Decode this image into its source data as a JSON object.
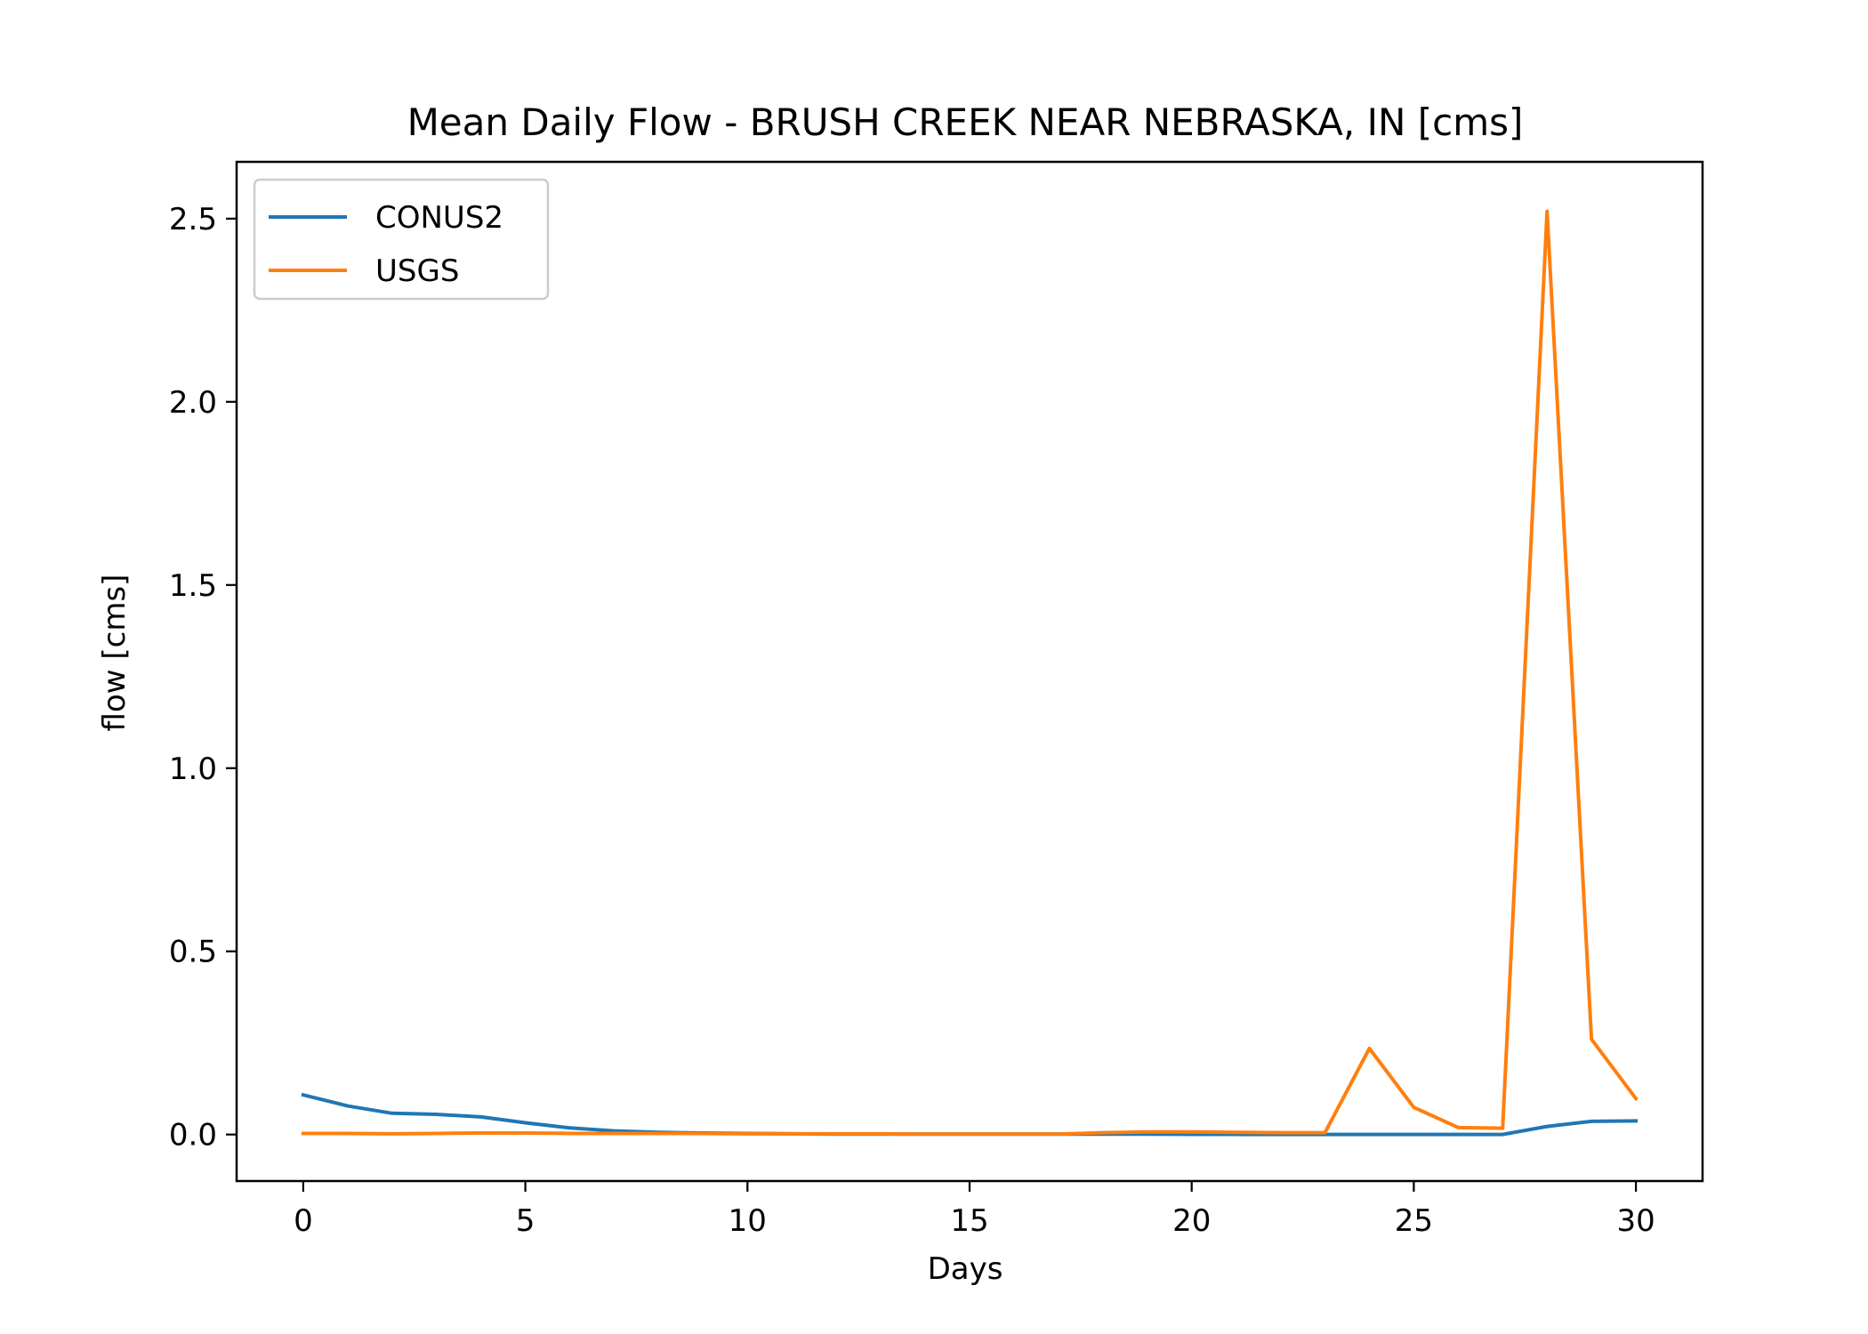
{
  "chart_data": {
    "type": "line",
    "title": "Mean Daily Flow - BRUSH CREEK NEAR NEBRASKA, IN [cms]",
    "xlabel": "Days",
    "ylabel": "flow [cms]",
    "xlim": [
      -1.5,
      31.5
    ],
    "ylim": [
      -0.127,
      2.655
    ],
    "xticks": [
      0,
      5,
      10,
      15,
      20,
      25,
      30
    ],
    "yticks": [
      0.0,
      0.5,
      1.0,
      1.5,
      2.0,
      2.5
    ],
    "xtick_labels": [
      "0",
      "5",
      "10",
      "15",
      "20",
      "25",
      "30"
    ],
    "ytick_labels": [
      "0.0",
      "0.5",
      "1.0",
      "1.5",
      "2.0",
      "2.5"
    ],
    "grid": false,
    "legend": "top-left",
    "x": [
      0,
      1,
      2,
      3,
      4,
      5,
      6,
      7,
      8,
      9,
      10,
      11,
      12,
      13,
      14,
      15,
      16,
      17,
      18,
      19,
      20,
      21,
      22,
      23,
      24,
      25,
      26,
      27,
      28,
      29,
      30
    ],
    "series": [
      {
        "name": "CONUS2",
        "color": "#1f77b4",
        "values": [
          0.108,
          0.078,
          0.058,
          0.055,
          0.048,
          0.032,
          0.018,
          0.01,
          0.006,
          0.004,
          0.003,
          0.002,
          0.001,
          0.001,
          0.001,
          0.001,
          0.001,
          0.001,
          0.001,
          0.001,
          0.0005,
          0.0003,
          0.0002,
          0.0001,
          0.0001,
          0.0001,
          0.0001,
          0.0001,
          0.022,
          0.036,
          0.037
        ]
      },
      {
        "name": "USGS",
        "color": "#ff7f0e",
        "values": [
          0.003,
          0.003,
          0.002,
          0.003,
          0.004,
          0.004,
          0.003,
          0.003,
          0.003,
          0.003,
          0.002,
          0.002,
          0.002,
          0.002,
          0.001,
          0.001,
          0.001,
          0.001,
          0.005,
          0.007,
          0.007,
          0.006,
          0.005,
          0.005,
          0.235,
          0.074,
          0.019,
          0.017,
          2.52,
          0.26,
          0.098
        ]
      }
    ]
  }
}
